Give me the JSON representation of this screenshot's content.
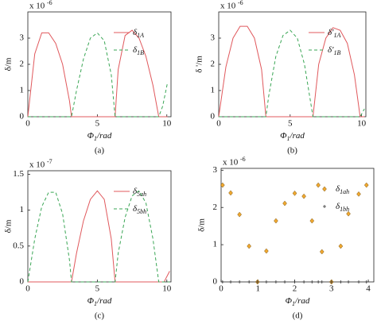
{
  "chart_data": [
    {
      "type": "line",
      "panel": "(a)",
      "ylabel": "δ/m",
      "xlabel": "Φ1/rad",
      "scale_base": "x 10",
      "scale_power": "-6",
      "legend": "upper right",
      "x": [
        0,
        0.5,
        1,
        1.5,
        2,
        2.5,
        3,
        3.14,
        3.5,
        4,
        4.5,
        5,
        5.5,
        6,
        6.28,
        6.5,
        7,
        7.5,
        8,
        8.5,
        9,
        9.42,
        9.7,
        10.05
      ],
      "series": [
        {
          "name": "δ1A",
          "color": "#e0585c",
          "dash": false,
          "values": [
            0,
            2.4,
            3.2,
            3.2,
            2.8,
            2.0,
            0.6,
            0,
            0,
            0,
            0,
            0,
            0,
            0,
            0,
            1.8,
            3.1,
            3.3,
            3.0,
            2.3,
            1.2,
            0,
            0,
            0
          ]
        },
        {
          "name": "δ1B",
          "color": "#3aa655",
          "dash": true,
          "values": [
            0,
            0,
            0,
            0,
            0,
            0,
            0,
            0,
            1.0,
            2.2,
            3.0,
            3.2,
            2.9,
            1.6,
            0,
            0,
            0,
            0,
            0,
            0,
            0,
            0,
            0.4,
            1.3
          ]
        }
      ],
      "xlim": [
        0,
        10.3
      ],
      "ylim": [
        0,
        4
      ],
      "xticks": [
        0,
        5,
        10
      ],
      "yticks": [
        0,
        1,
        2,
        3
      ]
    },
    {
      "type": "line",
      "panel": "(b)",
      "ylabel": "δ '/m",
      "xlabel": "Φ1/rad",
      "scale_base": "x 10",
      "scale_power": "-6",
      "legend": "upper right",
      "x": [
        0,
        0.5,
        1,
        1.5,
        2,
        2.5,
        3,
        3.3,
        3.5,
        4,
        4.5,
        5,
        5.5,
        6,
        6.6,
        7,
        7.5,
        8,
        8.5,
        9,
        9.5,
        9.9,
        10.2
      ],
      "series": [
        {
          "name": "δ'1A",
          "color": "#e0585c",
          "dash": false,
          "values": [
            0,
            1.9,
            3.0,
            3.45,
            3.45,
            3.0,
            1.8,
            0,
            0,
            0,
            0,
            0,
            0,
            0,
            0,
            2.0,
            3.0,
            3.4,
            3.3,
            2.8,
            1.6,
            0,
            0
          ]
        },
        {
          "name": "δ'1B",
          "color": "#3aa655",
          "dash": true,
          "values": [
            0,
            0,
            0,
            0,
            0,
            0,
            0,
            0,
            0.8,
            2.3,
            3.1,
            3.3,
            3.0,
            2.0,
            0,
            0,
            0,
            0,
            0,
            0,
            0,
            0,
            0.3
          ]
        }
      ],
      "xlim": [
        0,
        10.3
      ],
      "ylim": [
        0,
        4
      ],
      "xticks": [
        0,
        5,
        10
      ],
      "yticks": [
        0,
        1,
        2,
        3
      ]
    },
    {
      "type": "line",
      "panel": "(c)",
      "ylabel": "δ/m",
      "xlabel": "Φ1/rad",
      "scale_base": "x 10",
      "scale_power": "-7",
      "legend": "upper right",
      "x": [
        0,
        0.5,
        1,
        1.5,
        2,
        2.5,
        3,
        3.14,
        3.5,
        4,
        4.5,
        5,
        5.5,
        6,
        6.28,
        6.5,
        7,
        7.5,
        8,
        8.5,
        9,
        9.42,
        9.8,
        10.2
      ],
      "series": [
        {
          "name": "δ5ah",
          "color": "#e0585c",
          "dash": false,
          "values": [
            0,
            0,
            0,
            0,
            0,
            0,
            0,
            0,
            0.4,
            0.85,
            1.15,
            1.27,
            1.15,
            0.6,
            0,
            0,
            0,
            0,
            0,
            0,
            0,
            0,
            0,
            0.15
          ]
        },
        {
          "name": "δ5bh",
          "color": "#3aa655",
          "dash": true,
          "values": [
            0,
            0.6,
            1.05,
            1.25,
            1.25,
            0.95,
            0.3,
            0,
            0,
            0,
            0,
            0,
            0,
            0,
            0,
            0.4,
            0.9,
            1.2,
            1.27,
            1.1,
            0.6,
            0,
            0,
            0
          ]
        }
      ],
      "xlim": [
        0,
        10.3
      ],
      "ylim": [
        0,
        1.55
      ],
      "xticks": [
        0,
        5,
        10
      ],
      "yticks": [
        0,
        0.5,
        1,
        1.5
      ]
    },
    {
      "type": "scatter",
      "panel": "(d)",
      "ylabel": "δ/m",
      "xlabel": "Φ1/rad",
      "scale_base": "x 10",
      "scale_power": "-6",
      "legend": "upper right",
      "x": [
        0.04,
        0.26,
        0.5,
        0.76,
        0.99,
        1.23,
        1.49,
        1.73,
        2.0,
        2.25,
        2.47,
        2.64,
        2.74,
        3.0,
        3.25,
        3.46,
        3.74,
        3.95
      ],
      "series": [
        {
          "name": "δ1ah",
          "color": "#f0a830",
          "marker": "diamond",
          "values": [
            2.6,
            2.39,
            1.81,
            0.96,
            0,
            0.83,
            1.64,
            2.11,
            2.38,
            2.3,
            1.64,
            2.6,
            0.81,
            0,
            0.96,
            1.83,
            2.36,
            2.6
          ]
        },
        {
          "name": "δ1bh",
          "color": "#333333",
          "marker": "plus",
          "values": [
            0,
            0,
            0,
            0,
            0,
            0,
            0,
            0,
            0,
            0,
            0,
            0,
            0,
            0,
            0,
            0,
            0,
            0
          ]
        }
      ],
      "xlim": [
        0,
        4.15
      ],
      "ylim": [
        0,
        3.05
      ],
      "xticks": [
        0,
        1,
        2,
        3,
        4
      ],
      "yticks": [
        0,
        1,
        2,
        3
      ]
    }
  ]
}
